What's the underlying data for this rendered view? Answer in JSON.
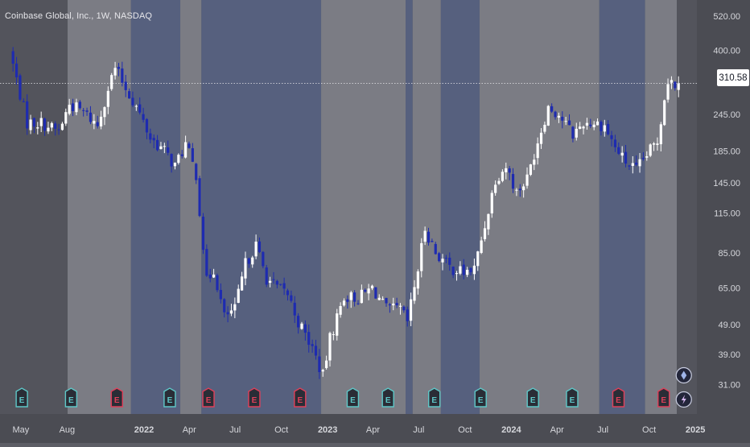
{
  "chart_title": "Coinbase Global, Inc., 1W, NASDAQ",
  "last_price_label": "310.58",
  "colors": {
    "background_dark": "#53545c",
    "band_gray": "#7b7c84",
    "band_blue": "#56607e",
    "candle_up": "#ffffff",
    "candle_down": "#1e2bb0",
    "axis_text": "#d6d7dc",
    "earnings_up": "#5ec8c8",
    "earnings_down": "#e0405a"
  },
  "chart_data": {
    "type": "candlestick",
    "y_scale": "log",
    "ylim": [
      28.5,
      560
    ],
    "y_ticks": [
      520,
      400,
      310.58,
      245,
      185,
      145,
      115,
      85,
      65,
      49,
      39,
      31
    ],
    "y_tick_labels": [
      "520.00",
      "400.00",
      "245.00",
      "185.00",
      "145.00",
      "115.00",
      "85.00",
      "65.00",
      "49.00",
      "39.00",
      "31.00"
    ],
    "x_range": [
      "2021-04-12",
      "2025-01-20"
    ],
    "x_ticks": [
      {
        "date": "2021-05-01",
        "label": "May",
        "bold": false
      },
      {
        "date": "2021-08-01",
        "label": "Aug",
        "bold": false
      },
      {
        "date": "2022-01-01",
        "label": "2022",
        "bold": true
      },
      {
        "date": "2022-04-01",
        "label": "Apr",
        "bold": false
      },
      {
        "date": "2022-07-01",
        "label": "Jul",
        "bold": false
      },
      {
        "date": "2022-10-01",
        "label": "Oct",
        "bold": false
      },
      {
        "date": "2023-01-01",
        "label": "2023",
        "bold": true
      },
      {
        "date": "2023-04-01",
        "label": "Apr",
        "bold": false
      },
      {
        "date": "2023-07-01",
        "label": "Jul",
        "bold": false
      },
      {
        "date": "2023-10-01",
        "label": "Oct",
        "bold": false
      },
      {
        "date": "2024-01-01",
        "label": "2024",
        "bold": true
      },
      {
        "date": "2024-04-01",
        "label": "Apr",
        "bold": false
      },
      {
        "date": "2024-07-01",
        "label": "Jul",
        "bold": false
      },
      {
        "date": "2024-10-01",
        "label": "Oct",
        "bold": false
      },
      {
        "date": "2025-01-01",
        "label": "2025",
        "bold": true
      }
    ],
    "current_price": 310.58,
    "bands": [
      {
        "start": "2021-08-02",
        "end": "2021-12-06",
        "color": "gray"
      },
      {
        "start": "2021-12-06",
        "end": "2022-03-14",
        "color": "blue"
      },
      {
        "start": "2022-03-14",
        "end": "2022-04-25",
        "color": "gray"
      },
      {
        "start": "2022-04-25",
        "end": "2022-12-19",
        "color": "blue"
      },
      {
        "start": "2022-12-19",
        "end": "2023-06-05",
        "color": "gray"
      },
      {
        "start": "2023-06-05",
        "end": "2023-06-19",
        "color": "blue"
      },
      {
        "start": "2023-06-19",
        "end": "2023-08-14",
        "color": "gray"
      },
      {
        "start": "2023-08-14",
        "end": "2023-10-30",
        "color": "blue"
      },
      {
        "start": "2023-10-30",
        "end": "2024-06-24",
        "color": "gray"
      },
      {
        "start": "2024-06-24",
        "end": "2024-09-23",
        "color": "blue"
      },
      {
        "start": "2024-09-23",
        "end": "2024-11-25",
        "color": "gray"
      }
    ],
    "waypoints": [
      [
        "2021-04-12",
        400
      ],
      [
        "2021-04-26",
        320
      ],
      [
        "2021-05-17",
        230
      ],
      [
        "2021-06-14",
        230
      ],
      [
        "2021-07-19",
        215
      ],
      [
        "2021-08-09",
        265
      ],
      [
        "2021-09-06",
        250
      ],
      [
        "2021-10-04",
        225
      ],
      [
        "2021-10-25",
        300
      ],
      [
        "2021-11-08",
        350
      ],
      [
        "2021-11-29",
        300
      ],
      [
        "2021-12-20",
        260
      ],
      [
        "2022-01-17",
        205
      ],
      [
        "2022-02-14",
        185
      ],
      [
        "2022-03-07",
        165
      ],
      [
        "2022-03-28",
        195
      ],
      [
        "2022-04-18",
        155
      ],
      [
        "2022-05-09",
        68
      ],
      [
        "2022-05-23",
        75
      ],
      [
        "2022-06-13",
        52
      ],
      [
        "2022-07-04",
        55
      ],
      [
        "2022-07-25",
        78
      ],
      [
        "2022-08-15",
        90
      ],
      [
        "2022-09-05",
        70
      ],
      [
        "2022-09-26",
        65
      ],
      [
        "2022-10-17",
        62
      ],
      [
        "2022-11-07",
        50
      ],
      [
        "2022-12-05",
        41
      ],
      [
        "2022-12-26",
        33
      ],
      [
        "2023-01-09",
        44
      ],
      [
        "2023-02-06",
        61
      ],
      [
        "2023-03-06",
        60
      ],
      [
        "2023-04-03",
        65
      ],
      [
        "2023-05-01",
        55
      ],
      [
        "2023-05-29",
        55
      ],
      [
        "2023-06-12",
        50
      ],
      [
        "2023-07-03",
        75
      ],
      [
        "2023-07-17",
        103
      ],
      [
        "2023-08-07",
        85
      ],
      [
        "2023-09-04",
        76
      ],
      [
        "2023-10-02",
        73
      ],
      [
        "2023-10-23",
        75
      ],
      [
        "2023-11-13",
        105
      ],
      [
        "2023-12-04",
        150
      ],
      [
        "2023-12-25",
        165
      ],
      [
        "2024-01-15",
        135
      ],
      [
        "2024-02-05",
        150
      ],
      [
        "2024-02-26",
        200
      ],
      [
        "2024-03-18",
        260
      ],
      [
        "2024-04-08",
        245
      ],
      [
        "2024-05-06",
        210
      ],
      [
        "2024-05-27",
        230
      ],
      [
        "2024-06-17",
        230
      ],
      [
        "2024-07-08",
        225
      ],
      [
        "2024-07-29",
        190
      ],
      [
        "2024-08-19",
        170
      ],
      [
        "2024-09-09",
        160
      ],
      [
        "2024-09-30",
        180
      ],
      [
        "2024-10-21",
        200
      ],
      [
        "2024-11-04",
        280
      ],
      [
        "2024-11-11",
        320
      ],
      [
        "2024-11-25",
        310.58
      ]
    ],
    "earnings_markers": [
      {
        "date": "2021-05-03",
        "type": "up",
        "label": "E"
      },
      {
        "date": "2021-08-09",
        "type": "up",
        "label": "E"
      },
      {
        "date": "2021-11-08",
        "type": "down",
        "label": "E"
      },
      {
        "date": "2022-02-21",
        "type": "up",
        "label": "E"
      },
      {
        "date": "2022-05-09",
        "type": "down",
        "label": "E"
      },
      {
        "date": "2022-08-08",
        "type": "down",
        "label": "E"
      },
      {
        "date": "2022-11-07",
        "type": "down",
        "label": "E"
      },
      {
        "date": "2023-02-20",
        "type": "up",
        "label": "E"
      },
      {
        "date": "2023-05-01",
        "type": "up",
        "label": "E"
      },
      {
        "date": "2023-08-01",
        "type": "up",
        "label": "E"
      },
      {
        "date": "2023-11-01",
        "type": "up",
        "label": "E"
      },
      {
        "date": "2024-02-13",
        "type": "up",
        "label": "E"
      },
      {
        "date": "2024-05-01",
        "type": "up",
        "label": "E"
      },
      {
        "date": "2024-08-01",
        "type": "down",
        "label": "E"
      },
      {
        "date": "2024-10-30",
        "type": "down",
        "label": "E"
      }
    ],
    "event_icons": [
      {
        "date": "2024-12-09",
        "icon": "diamond-icon"
      },
      {
        "date": "2024-12-09",
        "icon": "lightning-icon"
      }
    ]
  }
}
